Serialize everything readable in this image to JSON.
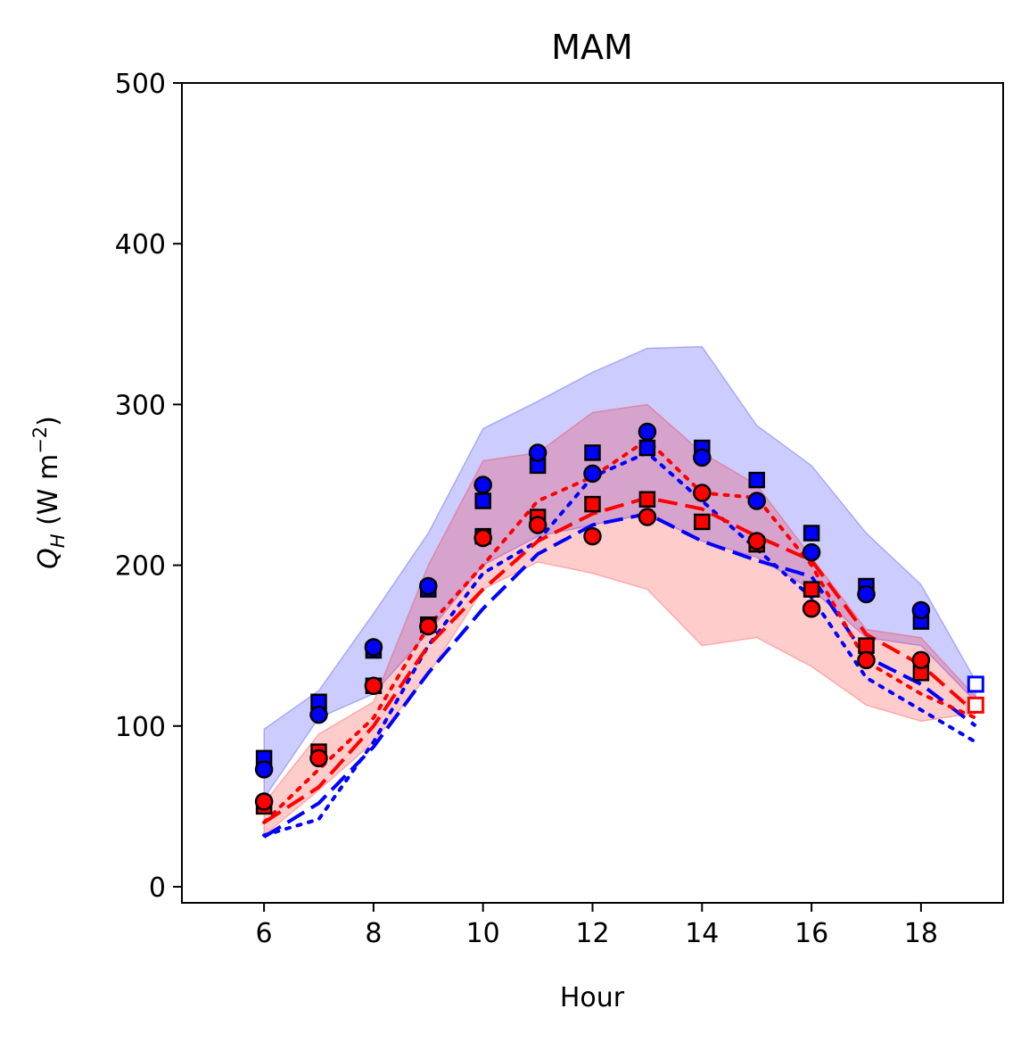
{
  "chart_data": {
    "type": "line",
    "title": "MAM",
    "xlabel": "Hour",
    "ylabel_main": "Q",
    "ylabel_sub": "H",
    "ylabel_unit_pre": " (W m",
    "ylabel_unit_sup": "−2",
    "ylabel_unit_post": ")",
    "xlim": [
      4.5,
      19.5
    ],
    "ylim": [
      -10,
      500
    ],
    "xticks": [
      6,
      8,
      10,
      12,
      14,
      16,
      18
    ],
    "yticks": [
      0,
      100,
      200,
      300,
      400,
      500
    ],
    "grid": false,
    "colors": {
      "blue": "#0000ff",
      "red": "#ff0000",
      "blue_band": "#0000ff",
      "red_band": "#ff0000"
    },
    "bands": [
      {
        "color": "blue",
        "x": [
          6,
          7,
          8,
          9,
          10,
          11,
          12,
          13,
          14,
          15,
          16,
          17,
          18,
          19
        ],
        "upper": [
          98,
          122,
          170,
          220,
          285,
          302,
          320,
          335,
          336,
          287,
          262,
          220,
          188,
          128
        ],
        "lower": [
          55,
          105,
          120,
          158,
          200,
          218,
          225,
          232,
          215,
          205,
          185,
          155,
          150,
          115
        ]
      },
      {
        "color": "red",
        "x": [
          6,
          7,
          8,
          9,
          10,
          11,
          12,
          13,
          14,
          15,
          16,
          17,
          18,
          19
        ],
        "upper": [
          52,
          95,
          115,
          200,
          265,
          270,
          295,
          300,
          270,
          250,
          205,
          160,
          155,
          118
        ],
        "lower": [
          32,
          60,
          90,
          132,
          185,
          202,
          195,
          185,
          150,
          155,
          137,
          113,
          103,
          108
        ]
      }
    ],
    "series": [
      {
        "color": "blue",
        "style": "dashed",
        "x": [
          6,
          7,
          8,
          9,
          10,
          11,
          12,
          13,
          14,
          15,
          16,
          17,
          18,
          19
        ],
        "y": [
          31,
          52,
          87,
          133,
          173,
          207,
          225,
          232,
          215,
          203,
          193,
          143,
          126,
          100
        ]
      },
      {
        "color": "blue",
        "style": "dotted",
        "x": [
          6,
          7,
          8,
          9,
          10,
          11,
          12,
          13,
          14,
          15,
          16,
          17,
          18,
          19
        ],
        "y": [
          32,
          42,
          90,
          150,
          195,
          215,
          255,
          270,
          240,
          210,
          180,
          130,
          110,
          90
        ]
      },
      {
        "color": "red",
        "style": "dashed",
        "x": [
          6,
          7,
          8,
          9,
          10,
          11,
          12,
          13,
          14,
          15,
          16,
          17,
          18,
          19
        ],
        "y": [
          40,
          62,
          100,
          150,
          185,
          215,
          232,
          242,
          235,
          218,
          203,
          157,
          138,
          108
        ]
      },
      {
        "color": "red",
        "style": "dotted",
        "x": [
          6,
          7,
          8,
          9,
          10,
          11,
          12,
          13,
          14,
          15,
          16,
          17,
          18,
          19
        ],
        "y": [
          40,
          73,
          105,
          162,
          200,
          240,
          255,
          278,
          245,
          242,
          200,
          140,
          120,
          105
        ]
      }
    ],
    "markers": [
      {
        "color": "blue",
        "shape": "square",
        "x": [
          6,
          7,
          8,
          9,
          10,
          11,
          12,
          13,
          14,
          15,
          16,
          17,
          18
        ],
        "y": [
          80,
          115,
          147,
          185,
          240,
          262,
          270,
          273,
          273,
          253,
          220,
          187,
          165
        ]
      },
      {
        "color": "blue",
        "shape": "circle",
        "x": [
          6,
          7,
          8,
          9,
          10,
          11,
          12,
          13,
          14,
          15,
          16,
          17,
          18
        ],
        "y": [
          73,
          107,
          149,
          187,
          250,
          270,
          257,
          283,
          267,
          240,
          208,
          182,
          172
        ]
      },
      {
        "color": "red",
        "shape": "square",
        "x": [
          6,
          7,
          8,
          9,
          10,
          11,
          12,
          13,
          14,
          15,
          16,
          17,
          18
        ],
        "y": [
          50,
          84,
          125,
          163,
          218,
          230,
          238,
          241,
          227,
          213,
          185,
          150,
          133
        ]
      },
      {
        "color": "red",
        "shape": "circle",
        "x": [
          6,
          7,
          8,
          9,
          10,
          11,
          12,
          13,
          14,
          15,
          16,
          17,
          18
        ],
        "y": [
          53,
          80,
          125,
          162,
          217,
          225,
          218,
          230,
          245,
          215,
          173,
          141,
          141
        ]
      },
      {
        "color": "blue",
        "shape": "square-open",
        "x": [
          19
        ],
        "y": [
          126
        ]
      },
      {
        "color": "red",
        "shape": "square-open",
        "x": [
          19
        ],
        "y": [
          113
        ]
      }
    ]
  }
}
